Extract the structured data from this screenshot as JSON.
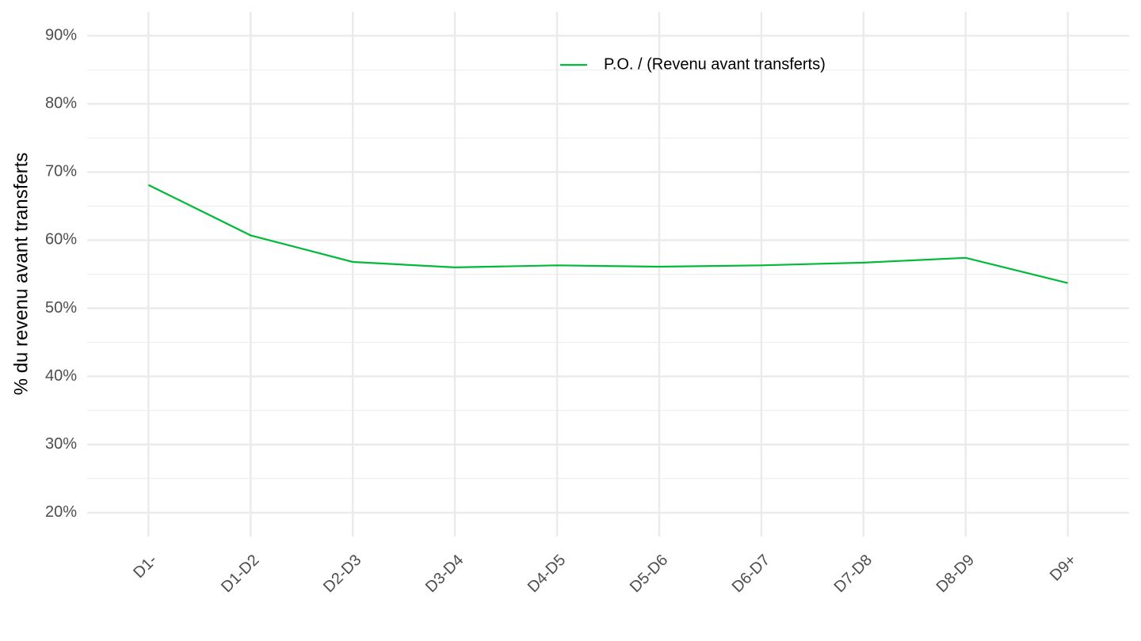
{
  "chart_data": {
    "type": "line",
    "y_label": "% du revenu avant transferts",
    "categories": [
      "D1-",
      "D1-D2",
      "D2-D3",
      "D3-D4",
      "D4-D5",
      "D5-D6",
      "D6-D7",
      "D7-D8",
      "D8-D9",
      "D9+"
    ],
    "series": [
      {
        "name": "P.O. / (Revenu avant transferts)",
        "color": "#00ba38",
        "values": [
          68.1,
          60.7,
          56.8,
          56.0,
          56.3,
          56.1,
          56.3,
          56.7,
          57.4,
          53.7
        ]
      }
    ],
    "ylim": [
      16.5,
      93.5
    ],
    "yticks": [
      {
        "value": 20,
        "label": "20%"
      },
      {
        "value": 30,
        "label": "30%"
      },
      {
        "value": 40,
        "label": "40%"
      },
      {
        "value": 50,
        "label": "50%"
      },
      {
        "value": 60,
        "label": "60%"
      },
      {
        "value": 70,
        "label": "70%"
      },
      {
        "value": 80,
        "label": "80%"
      },
      {
        "value": 90,
        "label": "90%"
      }
    ],
    "grid": true,
    "legend": "top"
  }
}
